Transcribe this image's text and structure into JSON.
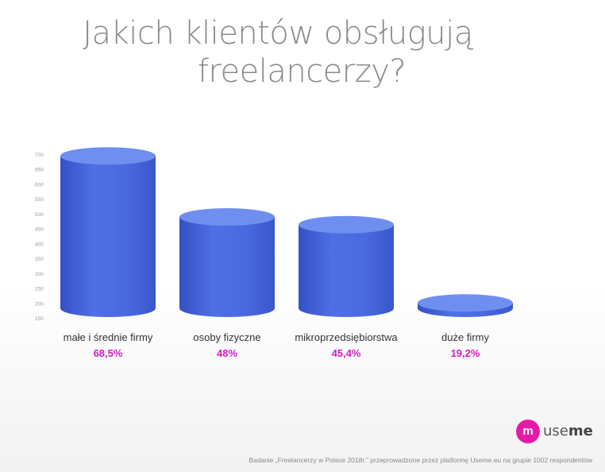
{
  "title_line1": "Jakich klientów obsługują",
  "title_line2": "freelancerzy?",
  "footer_note": "Badanie „Freelancerzy w Polsce 2018r.” przeprowadzone przez platformę Useme.eu na grupie 1002 respondentów",
  "logo": {
    "text_a": "use",
    "text_b": "me",
    "mark": "m",
    "color": "#e61aa8"
  },
  "colors": {
    "bar": "#4a6ae0",
    "bar_dark": "#3a57c9",
    "bar_top": "#6f8ff0",
    "value_label": "#d61cc3",
    "axis_text": "#9a9a9a"
  },
  "chart_data": {
    "type": "bar",
    "categories": [
      "małe i średnie firmy",
      "osoby fizyczne",
      "mikroprzedsiębiorstwa",
      "duże firmy"
    ],
    "value_labels": [
      "68,5%",
      "48%",
      "45,4%",
      "19,2%"
    ],
    "values": [
      686,
      481,
      455,
      192
    ],
    "y_ticks": [
      700,
      650,
      600,
      550,
      500,
      450,
      400,
      350,
      300,
      250,
      200,
      150
    ],
    "ylim": [
      150,
      700
    ],
    "grid": false,
    "legend": "none"
  }
}
